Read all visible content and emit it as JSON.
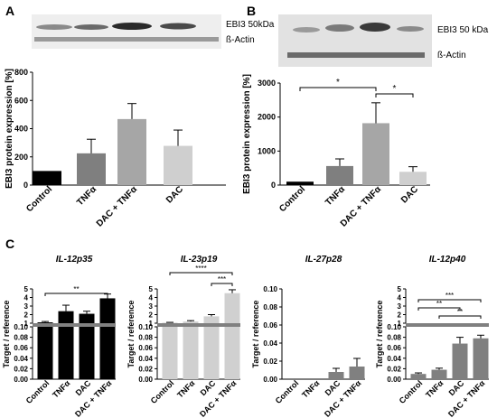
{
  "panel_labels": {
    "a": "A",
    "b": "B",
    "c": "C"
  },
  "blots": {
    "a": {
      "target_label": "EBI3 50kDa",
      "actin_label": "ß-Actin"
    },
    "b": {
      "target_label": "EBI3 50 kDa",
      "actin_label": "ß-Actin"
    }
  },
  "colors": {
    "Control": "#000000",
    "TNFa": "#7f7f7f",
    "DAC + TNFa": "#a6a6a6",
    "DAC": "#cfcfcf",
    "c_p35": "#000000",
    "c_p19": "#d0d0d0",
    "c_p28": "#808080",
    "c_p40": "#808080"
  },
  "chart_data": [
    {
      "id": "A",
      "type": "bar",
      "categories": [
        "Control",
        "TNFα",
        "DAC + TNFα",
        "DAC"
      ],
      "values": [
        100,
        225,
        468,
        278
      ],
      "errors": [
        0,
        100,
        110,
        112
      ],
      "ylabel": "EBI3 protein expression [%]",
      "ylim": [
        0,
        800
      ],
      "yticks": [
        0,
        200,
        400,
        600,
        800
      ],
      "grid": false
    },
    {
      "id": "B",
      "type": "bar",
      "categories": [
        "Control",
        "TNFα",
        "DAC + TNFα",
        "DAC"
      ],
      "values": [
        100,
        560,
        1820,
        390
      ],
      "errors": [
        0,
        210,
        600,
        150
      ],
      "ylabel": "EBI3 protein expression [%]",
      "ylim": [
        0,
        3000
      ],
      "yticks": [
        0,
        1000,
        2000,
        3000
      ],
      "significance": [
        {
          "from": 0,
          "to": 2,
          "label": "*"
        },
        {
          "from": 2,
          "to": 3,
          "label": "*"
        }
      ],
      "grid": false
    },
    {
      "id": "C1",
      "type": "bar",
      "title": "IL-12p35",
      "categories": [
        "Control",
        "TNFα",
        "DAC",
        "DAC + TNFα"
      ],
      "values": [
        1.1,
        2.4,
        2.1,
        3.9
      ],
      "errors": [
        0.1,
        0.7,
        0.3,
        0.5
      ],
      "ylabel": "Target / reference",
      "ylim_upper": [
        1,
        5
      ],
      "yticks_upper": [
        1,
        2,
        3,
        4,
        5
      ],
      "ylim_lower": [
        0,
        0.1
      ],
      "yticks_lower": [
        "0.00",
        "0.02",
        "0.04",
        "0.06",
        "0.08",
        "0.10"
      ],
      "significance": [
        {
          "from": 0,
          "to": 3,
          "label": "**"
        }
      ]
    },
    {
      "id": "C2",
      "type": "bar",
      "title": "IL-23p19",
      "categories": [
        "Control",
        "TNFα",
        "DAC",
        "DAC + TNFα"
      ],
      "values": [
        1.05,
        1.2,
        1.8,
        4.5
      ],
      "errors": [
        0.05,
        0.1,
        0.2,
        0.4
      ],
      "ylabel": "Target / reference",
      "ylim_upper": [
        1,
        5
      ],
      "yticks_upper": [
        1,
        2,
        3,
        4,
        5
      ],
      "ylim_lower": [
        0,
        0.1
      ],
      "yticks_lower": [
        "0.00",
        "0.02",
        "0.04",
        "0.06",
        "0.08",
        "0.10"
      ],
      "significance": [
        {
          "from": 0,
          "to": 3,
          "label": "****"
        },
        {
          "from": 2,
          "to": 3,
          "label": "***"
        }
      ]
    },
    {
      "id": "C3",
      "type": "bar",
      "title": "IL-27p28",
      "categories": [
        "Control",
        "TNFα",
        "DAC",
        "DAC + TNFα"
      ],
      "values": [
        0.0,
        0.0,
        0.008,
        0.014
      ],
      "errors": [
        0.0,
        0.0,
        0.004,
        0.009
      ],
      "ylabel": "Target / reference",
      "ylim": [
        0,
        0.1
      ],
      "yticks": [
        "0.00",
        "0.02",
        "0.04",
        "0.06",
        "0.08",
        "0.10"
      ]
    },
    {
      "id": "C4",
      "type": "bar",
      "title": "IL-12p40",
      "categories": [
        "Control",
        "TNFα",
        "DAC",
        "DAC + TNFα"
      ],
      "values": [
        0.01,
        0.018,
        0.068,
        0.078
      ],
      "errors": [
        0.002,
        0.003,
        0.012,
        0.006
      ],
      "ylabel": "Target / reference",
      "ylim_upper": [
        1,
        5
      ],
      "yticks_upper": [
        1,
        2,
        3,
        4,
        5
      ],
      "ylim_lower": [
        0,
        0.1
      ],
      "yticks_lower": [
        "0.00",
        "0.02",
        "0.04",
        "0.06",
        "0.08",
        "0.10"
      ],
      "significance": [
        {
          "from": 0,
          "to": 3,
          "label": "***"
        },
        {
          "from": 0,
          "to": 2,
          "label": "**"
        },
        {
          "from": 1,
          "to": 3,
          "label": "**"
        }
      ]
    }
  ]
}
